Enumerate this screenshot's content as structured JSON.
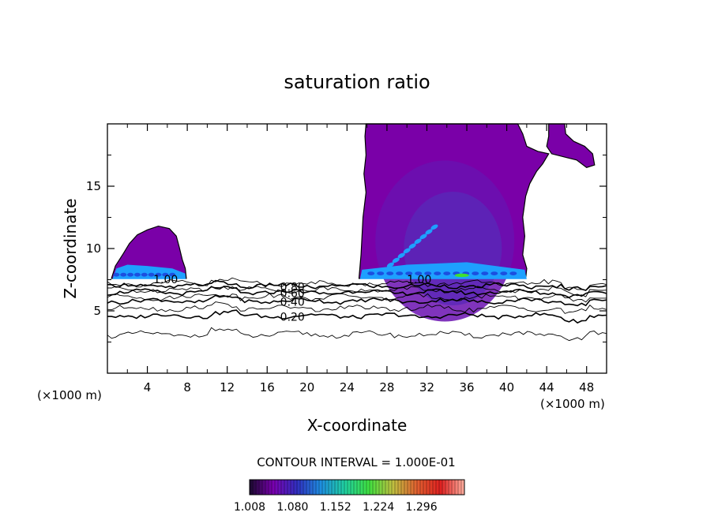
{
  "chart_data": {
    "type": "contour",
    "title": "saturation ratio",
    "xlabel": "X-coordinate",
    "ylabel": "Z-coordinate",
    "x_unit": "(×1000 m)",
    "x_unit_right": "(×1000 m)",
    "xlim": [
      0,
      50
    ],
    "ylim": [
      0,
      20
    ],
    "x_ticks": [
      4,
      8,
      12,
      16,
      20,
      24,
      28,
      32,
      36,
      40,
      44,
      48
    ],
    "y_ticks": [
      5,
      10,
      15
    ],
    "contour_interval_label": "CONTOUR INTERVAL = 1.000E-01",
    "line_contours": [
      {
        "level": "0.20",
        "z": 4.6,
        "label_x": 17.3
      },
      {
        "level": "0.40",
        "z": 5.8,
        "label_x": 17.3
      },
      {
        "level": "0.60",
        "z": 6.5,
        "label_x": 17.3
      },
      {
        "level": "0.80",
        "z": 7.0,
        "label_x": 17.3
      },
      {
        "level": "1.00",
        "z": 7.6,
        "label_x": 4.6
      },
      {
        "level": "1.00",
        "z": 7.6,
        "label_x": 30.0
      }
    ],
    "extra_contour_z": [
      3.1,
      5.2,
      6.1,
      6.7,
      7.2
    ],
    "colorbar": {
      "min": 1.008,
      "max": 1.368,
      "tick_labels": [
        "1.008",
        "1.080",
        "1.152",
        "1.224",
        "1.296"
      ],
      "colors": [
        "#1a0a2e",
        "#7a00b0",
        "#3030c0",
        "#1e8fe0",
        "#20d0a0",
        "#40e040",
        "#c0c040",
        "#e06030",
        "#e02020",
        "#ffb0a0"
      ]
    },
    "fill_colors": {
      "outer": "#7a00a8",
      "inner": "#6a10b0",
      "core": "#5a28b8",
      "cyan": "#1ea0ff",
      "deep": "#1b4fe0",
      "green": "#40e030"
    }
  }
}
